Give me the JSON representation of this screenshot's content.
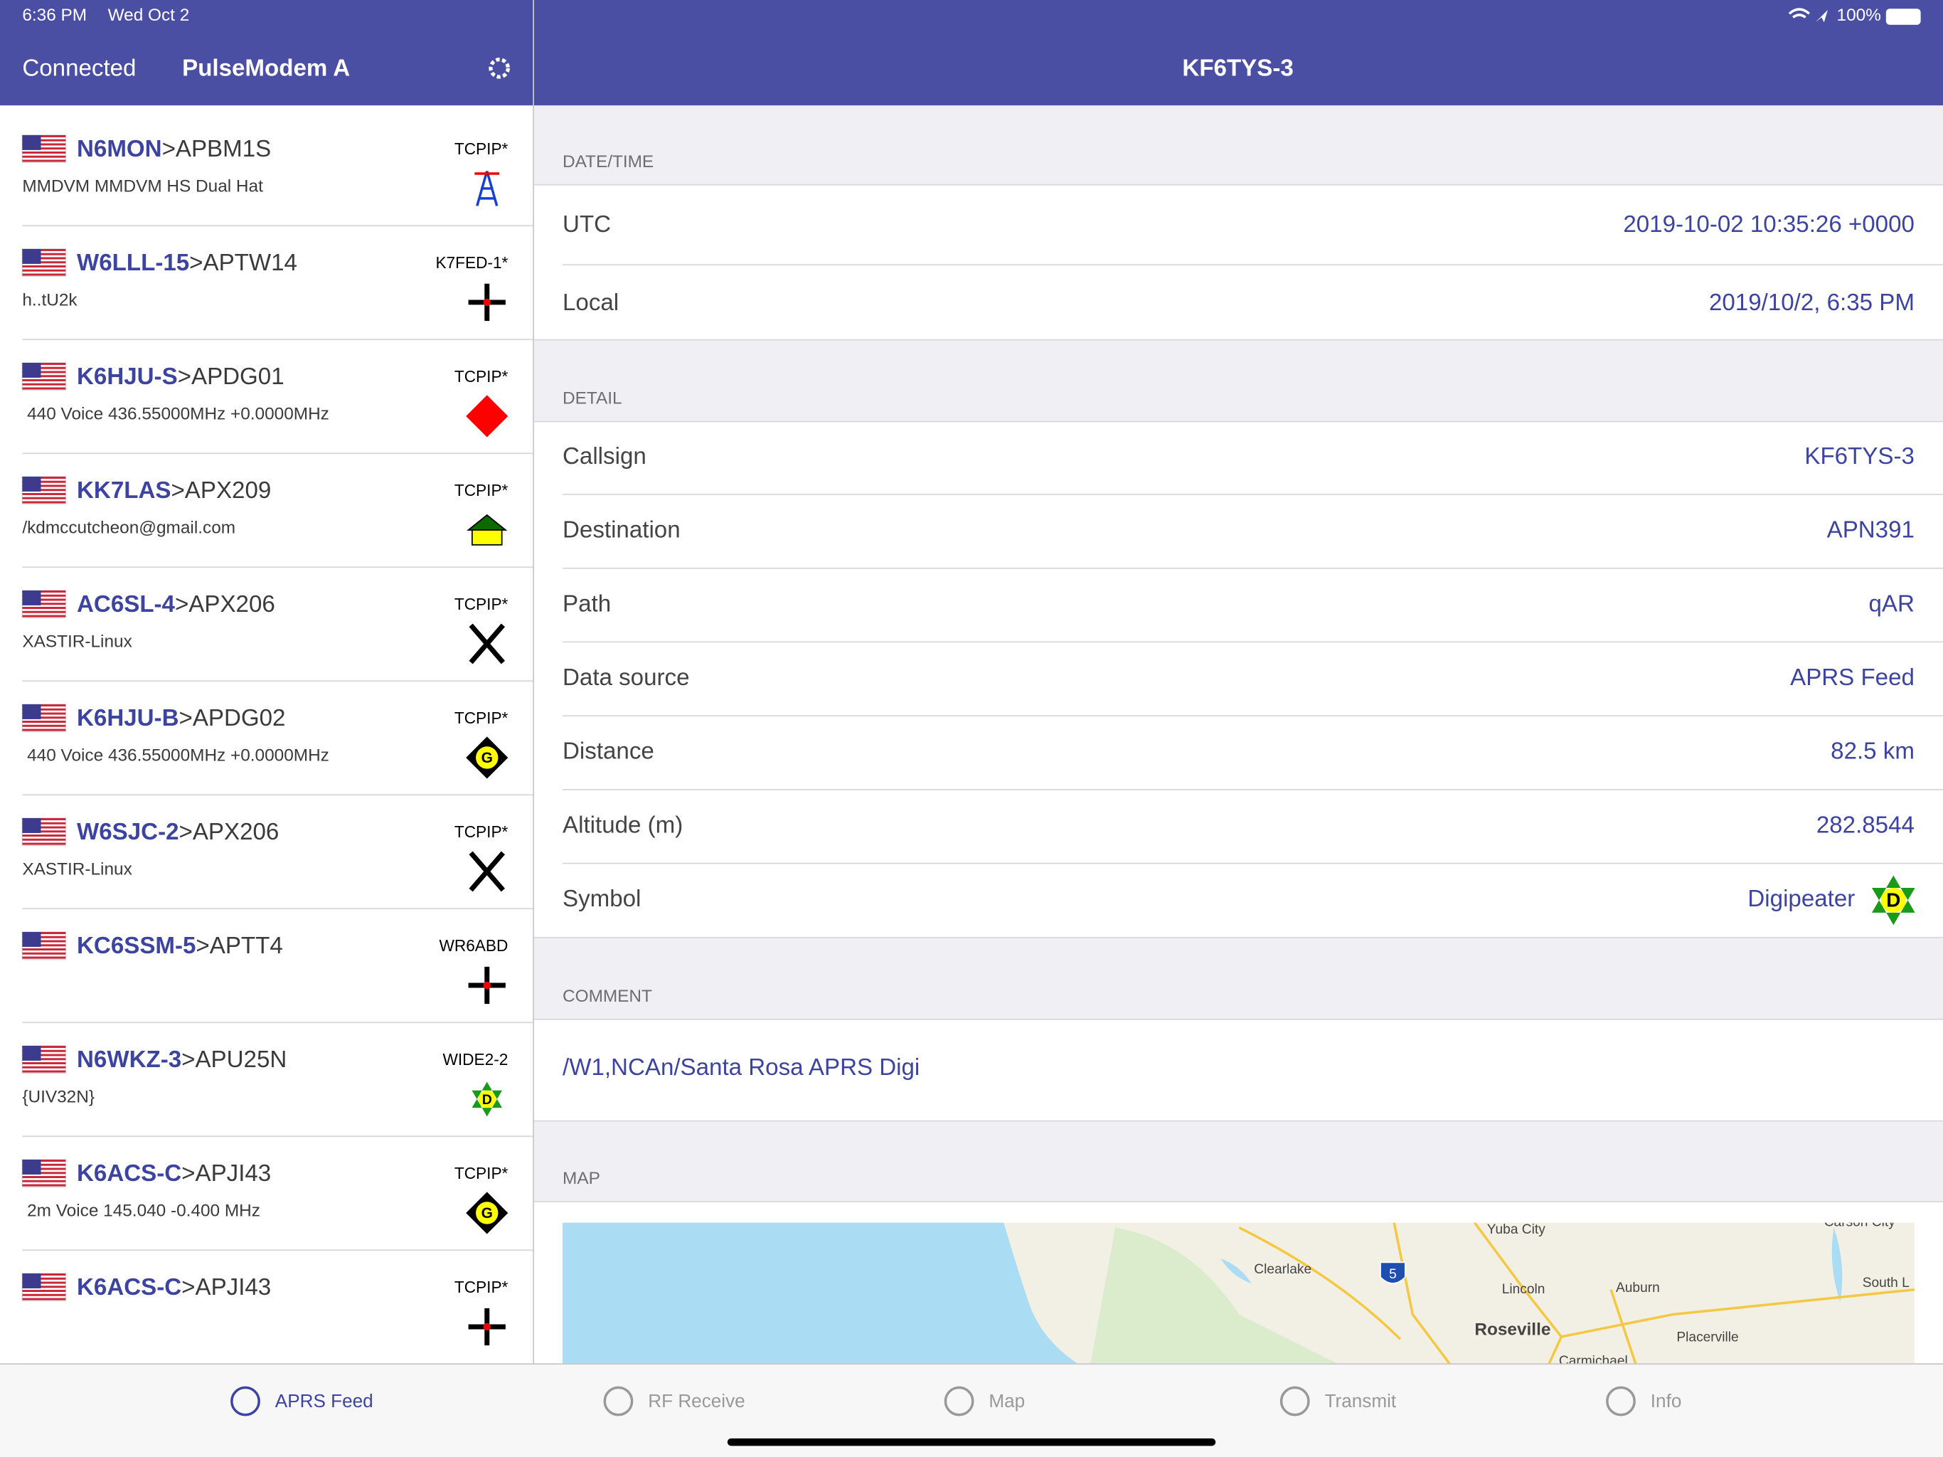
{
  "status_bar": {
    "time": "6:36 PM",
    "date": "Wed Oct 2",
    "battery": "100%"
  },
  "sidebar": {
    "status": "Connected",
    "device": "PulseModem A",
    "items": [
      {
        "callsign": "N6MON",
        "destination": ">APBM1S",
        "comment": "MMDVM MMDVM HS Dual Hat",
        "via": "TCPIP*"
      },
      {
        "callsign": "W6LLL-15",
        "destination": ">APTW14",
        "comment": "h..tU2k",
        "via": "K7FED-1*"
      },
      {
        "callsign": "K6HJU-S",
        "destination": ">APDG01",
        "comment": " 440 Voice 436.55000MHz +0.0000MHz",
        "via": "TCPIP*"
      },
      {
        "callsign": "KK7LAS",
        "destination": ">APX209",
        "comment": "/kdmccutcheon@gmail.com",
        "via": "TCPIP*"
      },
      {
        "callsign": "AC6SL-4",
        "destination": ">APX206",
        "comment": "XASTIR-Linux",
        "via": "TCPIP*"
      },
      {
        "callsign": "K6HJU-B",
        "destination": ">APDG02",
        "comment": " 440 Voice 436.55000MHz +0.0000MHz",
        "via": "TCPIP*",
        "icon_text": "G"
      },
      {
        "callsign": "W6SJC-2",
        "destination": ">APX206",
        "comment": "XASTIR-Linux",
        "via": "TCPIP*"
      },
      {
        "callsign": "KC6SSM-5",
        "destination": ">APTT4",
        "via": "WR6ABD"
      },
      {
        "callsign": "N6WKZ-3",
        "destination": ">APU25N",
        "comment": "{UIV32N}",
        "via": "WIDE2-2",
        "icon_text": "D"
      },
      {
        "callsign": "K6ACS-C",
        "destination": ">APJI43",
        "comment": " 2m Voice 145.040 -0.400 MHz",
        "via": "TCPIP*",
        "icon_text": "G"
      },
      {
        "callsign": "K6ACS-C",
        "destination": ">APJI43",
        "via": "TCPIP*"
      }
    ]
  },
  "detail": {
    "title": "KF6TYS-3",
    "date_time": {
      "header": "DATE/TIME",
      "rows": [
        {
          "label": "UTC",
          "value": "2019-10-02 10:35:26 +0000"
        },
        {
          "label": "Local",
          "value": "2019/10/2, 6:35 PM"
        }
      ]
    },
    "info": {
      "header": "DETAIL",
      "rows": [
        {
          "label": "Callsign",
          "value": "KF6TYS-3"
        },
        {
          "label": "Destination",
          "value": "APN391"
        },
        {
          "label": "Path",
          "value": "qAR"
        },
        {
          "label": "Data source",
          "value": "APRS Feed"
        },
        {
          "label": "Distance",
          "value": "82.5 km"
        },
        {
          "label": "Altitude (m)",
          "value": "282.8544"
        },
        {
          "label": "Symbol",
          "value": "Digipeater",
          "icon_text": "D"
        }
      ]
    },
    "comment": {
      "header": "COMMENT",
      "text": "/W1,NCAn/Santa Rosa APRS Digi"
    },
    "map": {
      "header": "MAP",
      "labels": [
        "Yuba City",
        "Clearlake",
        "5",
        "Lincoln",
        "Auburn",
        "Roseville",
        "Placerville",
        "Carson City",
        "South L",
        "Carmichael"
      ]
    }
  },
  "tab_bar": {
    "tabs": [
      "APRS Feed",
      "RF Receive",
      "Map",
      "Transmit",
      "Info"
    ]
  }
}
